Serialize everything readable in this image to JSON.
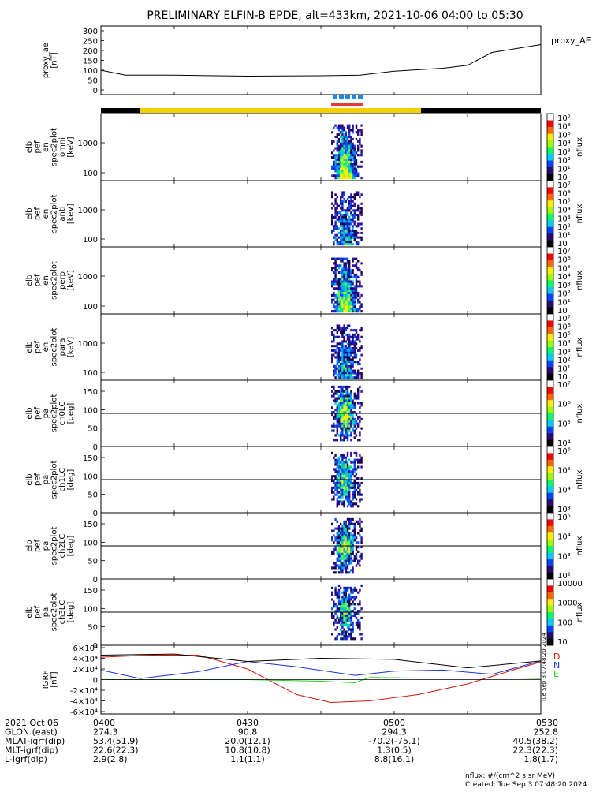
{
  "title": "PRELIMINARY ELFIN-B EPDE, alt=433km, 2021-10-06 04:00 to 05:30",
  "panels": [
    {
      "id": "ae",
      "ylabel": [
        "proxy_ae",
        "[nT]"
      ],
      "right_label": "proxy_AE",
      "yticks": [
        "0",
        "50",
        "100",
        "150",
        "200",
        "250",
        "300"
      ]
    },
    {
      "id": "en_omni",
      "ylabel": [
        "elb",
        "pef",
        "en",
        "spec2plot",
        "omni",
        "[keV]"
      ],
      "yticks": [
        "100",
        "1000"
      ],
      "cb_label": "nflux",
      "cb_ticks": [
        "10",
        "10¹",
        "10²",
        "10³",
        "10⁴",
        "10⁵",
        "10⁶",
        "10⁷"
      ]
    },
    {
      "id": "en_anti",
      "ylabel": [
        "elb",
        "pef",
        "en",
        "spec2plot",
        "anti",
        "[keV]"
      ],
      "yticks": [
        "100",
        "1000"
      ],
      "cb_label": "nflux",
      "cb_ticks": [
        "10",
        "10¹",
        "10²",
        "10³",
        "10⁴",
        "10⁵",
        "10⁶",
        "10⁷"
      ]
    },
    {
      "id": "en_perp",
      "ylabel": [
        "elb",
        "pef",
        "en",
        "spec2plot",
        "perp",
        "[keV]"
      ],
      "yticks": [
        "100",
        "1000"
      ],
      "cb_label": "nflux",
      "cb_ticks": [
        "10",
        "10¹",
        "10²",
        "10³",
        "10⁴",
        "10⁵",
        "10⁶",
        "10⁷"
      ]
    },
    {
      "id": "en_para",
      "ylabel": [
        "elb",
        "pef",
        "en",
        "spec2plot",
        "para",
        "[keV]"
      ],
      "yticks": [
        "100",
        "1000"
      ],
      "cb_label": "nflux",
      "cb_ticks": [
        "10",
        "10¹",
        "10²",
        "10³",
        "10⁴",
        "10⁵",
        "10⁶",
        "10⁷"
      ]
    },
    {
      "id": "pa_ch0",
      "ylabel": [
        "elb",
        "pef",
        "pa",
        "spec2plot",
        "ch0LC",
        "[deg]"
      ],
      "yticks": [
        "0",
        "50",
        "100",
        "150"
      ],
      "cb_label": "nflux",
      "cb_ticks": [
        "10⁴",
        "10⁵",
        "10⁶",
        "10⁷"
      ]
    },
    {
      "id": "pa_ch1",
      "ylabel": [
        "elb",
        "pef",
        "pa",
        "spec2plot",
        "ch1LC",
        "[deg]"
      ],
      "yticks": [
        "0",
        "50",
        "100",
        "150"
      ],
      "cb_label": "nflux",
      "cb_ticks": [
        "10³",
        "10⁴",
        "10⁵",
        "10⁶"
      ]
    },
    {
      "id": "pa_ch2",
      "ylabel": [
        "elb",
        "pef",
        "pa",
        "spec2plot",
        "ch2LC",
        "[deg]"
      ],
      "yticks": [
        "0",
        "50",
        "100",
        "150"
      ],
      "cb_label": "nflux",
      "cb_ticks": [
        "10²",
        "10³",
        "10⁴",
        "10⁵"
      ]
    },
    {
      "id": "pa_ch3",
      "ylabel": [
        "elb",
        "pef",
        "pa",
        "spec2plot",
        "ch3LC",
        "[deg]"
      ],
      "yticks": [
        "0",
        "50",
        "100",
        "150"
      ],
      "cb_label": "nflux",
      "cb_ticks": [
        "10",
        "100",
        "1000",
        "10000"
      ]
    },
    {
      "id": "igrf",
      "ylabel": [
        "IGRF",
        "[nT]"
      ],
      "yticks": [
        "-6×10⁴",
        "-4×10⁴",
        "-2×10⁴",
        "0",
        "2×10⁴",
        "4×10⁴",
        "6×10⁴"
      ],
      "legend": [
        "D",
        "N",
        "E"
      ]
    }
  ],
  "ephemeris": {
    "rows": [
      {
        "label": "2021 Oct 06",
        "vals": [
          "0400",
          "0430",
          "0500",
          "0530"
        ]
      },
      {
        "label": "GLON (east)",
        "vals": [
          "274.3",
          "90.8",
          "294.3",
          "252.8"
        ]
      },
      {
        "label": "MLAT-igrf(dip)",
        "vals": [
          "53.4(51.9)",
          "20.0(12.1)",
          "-70.2(-75.1)",
          "40.5(38.2)"
        ]
      },
      {
        "label": "MLT-igrf(dip)",
        "vals": [
          "22.6(22.3)",
          "10.8(10.8)",
          "1.3(0.5)",
          "22.3(22.3)"
        ]
      },
      {
        "label": "L-igrf(dip)",
        "vals": [
          "2.9(2.8)",
          "1.1(1.1)",
          "8.8(16.1)",
          "1.8(1.7)"
        ]
      }
    ]
  },
  "footer": {
    "units": "nflux: #/(cm^2 s sr MeV)",
    "created": "Created: Tue Sep  3 07:48:20 2024",
    "stamp": "Tue Sep 3 07:48:20 2024"
  },
  "colors": {
    "yellow": "#f5d000",
    "blue_bar": "#1e88e5",
    "red_bar": "#e53935",
    "D": "#d11a0a",
    "N": "#1830e0",
    "E": "#22cc22",
    "total": "#000000"
  },
  "chart_data": {
    "type": "line",
    "x_time_labels": [
      "0400",
      "0430",
      "0500",
      "0530"
    ],
    "ae": {
      "x": [
        "04:00",
        "04:05",
        "04:15",
        "04:30",
        "04:45",
        "04:53",
        "05:00",
        "05:10",
        "05:15",
        "05:20",
        "05:30"
      ],
      "values": [
        100,
        75,
        75,
        70,
        72,
        75,
        95,
        110,
        125,
        190,
        230
      ],
      "ylim": [
        0,
        300
      ]
    },
    "igrf": {
      "ylim": [
        -60000,
        60000
      ],
      "series": [
        {
          "name": "D",
          "x": [
            "04:00",
            "04:10",
            "04:20",
            "04:30",
            "04:40",
            "04:47",
            "04:55",
            "05:05",
            "05:15",
            "05:25",
            "05:30"
          ],
          "values": [
            42000,
            46000,
            46000,
            20000,
            -28000,
            -43000,
            -40000,
            -28000,
            -8000,
            20000,
            33000
          ]
        },
        {
          "name": "N",
          "x": [
            "04:00",
            "04:08",
            "04:20",
            "04:30",
            "04:40",
            "04:52",
            "05:00",
            "05:10",
            "05:20",
            "05:30"
          ],
          "values": [
            18000,
            2000,
            15000,
            34000,
            24000,
            8000,
            16000,
            18000,
            10000,
            35000
          ]
        },
        {
          "name": "E",
          "x": [
            "04:00",
            "04:30",
            "04:45",
            "04:52",
            "04:55",
            "05:05",
            "05:15",
            "05:25",
            "05:30"
          ],
          "values": [
            0,
            0,
            -3000,
            -6000,
            4000,
            3000,
            3000,
            3000,
            2000
          ]
        },
        {
          "x": [
            "04:00",
            "04:15",
            "04:30",
            "04:45",
            "05:00",
            "05:15",
            "05:30"
          ],
          "values": [
            46000,
            48000,
            34000,
            40000,
            38000,
            22000,
            35000
          ]
        }
      ]
    }
  }
}
